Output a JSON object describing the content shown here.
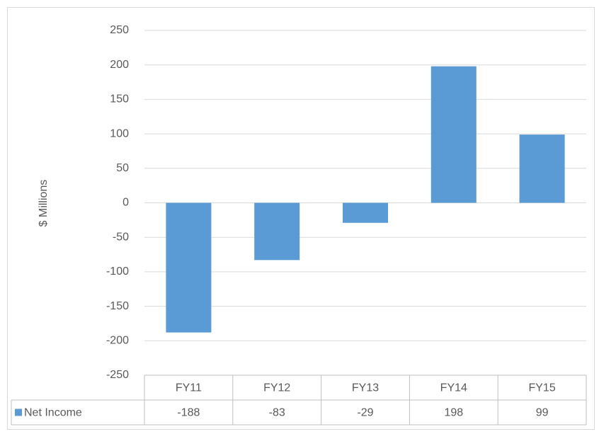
{
  "chart_data": {
    "type": "bar",
    "y_label": "$ Millions",
    "categories": [
      "FY11",
      "FY12",
      "FY13",
      "FY14",
      "FY15"
    ],
    "series": [
      {
        "name": "Net Income",
        "color": "#5b9bd5",
        "values": [
          -188,
          -83,
          -29,
          198,
          99
        ]
      }
    ],
    "ylim": [
      -250,
      250
    ],
    "yticks": [
      -250,
      -200,
      -150,
      -100,
      -50,
      0,
      50,
      100,
      150,
      200,
      250
    ],
    "grid": true,
    "data_table": true
  }
}
